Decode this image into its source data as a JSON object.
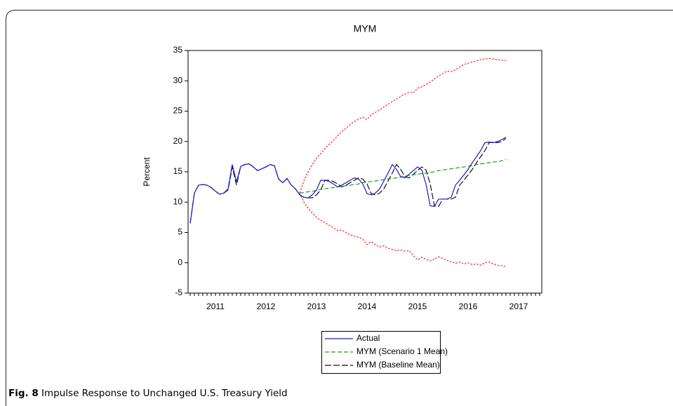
{
  "chart_data": {
    "type": "line",
    "title": "MYM",
    "y_label": "Percent",
    "categories": [
      null,
      null,
      null,
      null,
      null,
      null,
      "2011",
      null,
      null,
      null,
      null,
      null,
      null,
      null,
      null,
      null,
      null,
      null,
      "2012",
      null,
      null,
      null,
      null,
      null,
      null,
      null,
      null,
      null,
      null,
      null,
      "2013",
      null,
      null,
      null,
      null,
      null,
      null,
      null,
      null,
      null,
      null,
      null,
      "2014",
      null,
      null,
      null,
      null,
      null,
      null,
      null,
      null,
      null,
      null,
      null,
      "2015",
      null,
      null,
      null,
      null,
      null,
      null,
      null,
      null,
      null,
      null,
      null,
      "2016",
      null,
      null,
      null,
      null,
      null,
      null,
      null,
      null,
      null,
      null,
      null,
      "2017",
      null,
      null,
      null,
      null,
      null
    ],
    "ylim": [
      -5,
      35
    ],
    "yticks": [
      -5,
      0,
      5,
      10,
      15,
      20,
      25,
      30,
      35
    ],
    "grid": false,
    "series": [
      {
        "name": "Actual",
        "color": "#1a1acc",
        "style": "solid",
        "values": [
          6.5,
          11.5,
          12.8,
          12.9,
          12.8,
          12.4,
          11.8,
          11.3,
          11.5,
          12.2,
          16.2,
          13.3,
          15.9,
          16.2,
          16.3,
          15.8,
          15.2,
          15.5,
          15.8,
          16.2,
          16.0,
          13.8,
          13.2,
          13.9,
          12.8,
          12.2,
          11.2,
          10.8,
          10.7,
          11.2,
          12.0,
          13.6,
          13.6,
          13.4,
          13.0,
          12.5,
          12.8,
          13.2,
          13.6,
          14.0,
          13.8,
          13.0,
          11.4,
          11.2,
          11.5,
          12.2,
          13.5,
          14.8,
          16.2,
          15.4,
          14.2,
          14.0,
          14.6,
          15.2,
          15.8,
          15.3,
          13.0,
          9.4,
          9.3,
          10.5,
          10.5,
          10.5,
          10.8,
          12.8,
          13.6,
          14.5,
          15.4,
          16.5,
          17.5,
          18.5,
          19.8,
          19.9,
          19.8,
          20.0,
          20.3,
          20.7,
          null,
          null,
          null,
          null,
          null,
          null,
          null,
          null
        ]
      },
      {
        "name": "MYM (Scenario 1 Mean)",
        "color": "#1f9a1f",
        "style": "dashed",
        "values": [
          null,
          null,
          null,
          null,
          null,
          null,
          null,
          null,
          null,
          null,
          null,
          null,
          null,
          null,
          null,
          null,
          null,
          null,
          null,
          null,
          null,
          null,
          null,
          null,
          null,
          null,
          11.5,
          11.6,
          11.7,
          11.8,
          11.9,
          12.1,
          12.2,
          12.3,
          12.4,
          12.5,
          12.6,
          12.7,
          12.8,
          12.9,
          13.0,
          13.2,
          13.3,
          13.4,
          13.5,
          13.6,
          13.7,
          13.8,
          13.9,
          14.0,
          14.1,
          14.3,
          14.4,
          14.5,
          14.6,
          14.7,
          14.8,
          14.9,
          15.0,
          15.2,
          15.3,
          15.4,
          15.5,
          15.6,
          15.7,
          15.8,
          15.9,
          16.0,
          16.2,
          16.3,
          16.4,
          16.5,
          16.6,
          16.7,
          16.8,
          17.0,
          null,
          null,
          null,
          null,
          null,
          null,
          null,
          null
        ]
      },
      {
        "name": "MYM (Baseline Mean)",
        "color": "#111111",
        "style": "longdash",
        "values": [
          6.5,
          11.5,
          12.8,
          12.9,
          12.8,
          12.4,
          11.8,
          11.3,
          11.5,
          12.0,
          15.8,
          12.8,
          15.9,
          16.2,
          16.3,
          15.8,
          15.2,
          15.5,
          15.8,
          16.2,
          16.0,
          13.8,
          13.2,
          13.9,
          12.8,
          12.2,
          11.2,
          10.8,
          10.7,
          10.7,
          11.2,
          12.0,
          13.6,
          13.6,
          13.4,
          13.0,
          12.5,
          12.8,
          13.2,
          13.6,
          14.0,
          13.8,
          13.0,
          11.4,
          11.2,
          11.5,
          12.2,
          13.5,
          14.8,
          16.2,
          15.4,
          14.2,
          14.0,
          14.6,
          15.2,
          15.8,
          15.3,
          13.0,
          9.4,
          9.3,
          10.5,
          10.5,
          10.5,
          10.8,
          12.8,
          13.6,
          14.5,
          15.4,
          16.5,
          17.5,
          18.5,
          19.8,
          19.9,
          19.8,
          20.0,
          20.5,
          null,
          null,
          null,
          null,
          null,
          null,
          null,
          null
        ]
      },
      {
        "color": "#ff2020",
        "style": "dotted",
        "values": [
          null,
          null,
          null,
          null,
          null,
          null,
          null,
          null,
          null,
          null,
          null,
          null,
          null,
          null,
          null,
          null,
          null,
          null,
          null,
          null,
          null,
          null,
          null,
          null,
          null,
          null,
          11.5,
          13.5,
          15,
          16.2,
          17.2,
          18,
          18.8,
          19.5,
          20.2,
          20.9,
          21.6,
          22.2,
          22.8,
          23.3,
          23.7,
          24.0,
          23.6,
          24.4,
          24.8,
          25.2,
          25.7,
          26.1,
          26.6,
          27.0,
          27.4,
          27.8,
          28.1,
          28.0,
          28.8,
          29.0,
          29.4,
          29.8,
          30.3,
          30.8,
          31.2,
          31.6,
          31.5,
          31.8,
          32.3,
          32.7,
          32.9,
          33.1,
          33.3,
          33.5,
          33.6,
          33.7,
          33.6,
          33.5,
          33.4,
          33.3,
          null,
          null,
          null,
          null,
          null,
          null,
          null,
          null
        ]
      },
      {
        "color": "#ff2020",
        "style": "dotted",
        "values": [
          null,
          null,
          null,
          null,
          null,
          null,
          null,
          null,
          null,
          null,
          null,
          null,
          null,
          null,
          null,
          null,
          null,
          null,
          null,
          null,
          null,
          null,
          null,
          null,
          null,
          null,
          11.5,
          10,
          9,
          8.2,
          7.5,
          7,
          6.6,
          6.2,
          5.8,
          5.3,
          5.4,
          5.0,
          4.6,
          4.4,
          4.2,
          3.9,
          3.0,
          3.5,
          3.0,
          2.6,
          2.8,
          2.4,
          2.2,
          2.0,
          2.1,
          1.9,
          2.0,
          1.2,
          0.5,
          0.9,
          0.6,
          0.3,
          0.6,
          1.0,
          0.7,
          0.4,
          0.2,
          -0.1,
          0.1,
          -0.2,
          0.0,
          -0.3,
          -0.2,
          -0.4,
          0.0,
          0.1,
          -0.2,
          -0.4,
          -0.5,
          -0.6,
          null,
          null,
          null,
          null,
          null,
          null,
          null,
          null
        ]
      }
    ]
  },
  "caption": {
    "label": "Fig. 8",
    "text": "Impulse Response to Unchanged U.S. Treasury Yield"
  }
}
